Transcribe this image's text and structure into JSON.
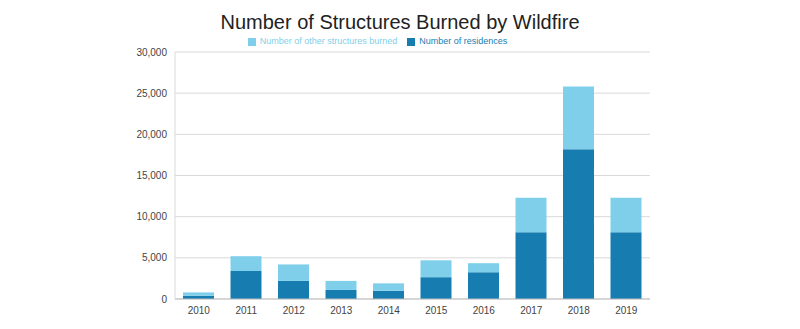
{
  "chart_data": {
    "type": "bar",
    "title": "Number of Structures Burned by Wildfire",
    "categories": [
      "2010",
      "2011",
      "2012",
      "2013",
      "2014",
      "2015",
      "2016",
      "2017",
      "2018",
      "2019"
    ],
    "series": [
      {
        "name": "Number of residences",
        "color": "#177db0",
        "values": [
          400,
          3400,
          2200,
          1100,
          1000,
          2650,
          3250,
          8100,
          18200,
          8100
        ]
      },
      {
        "name": "Number of other structures burned",
        "color": "#7fcfea",
        "values": [
          400,
          1800,
          2000,
          1100,
          900,
          2050,
          1100,
          4200,
          7600,
          4200
        ]
      }
    ],
    "stacked": true,
    "ylim": [
      0,
      30000
    ],
    "yticks": [
      0,
      {
        "value": 5000,
        "label": "5,000"
      },
      {
        "value": 10000,
        "label": "10,000"
      },
      {
        "value": 15000,
        "label": "15,000"
      },
      {
        "value": 20000,
        "label": "20,000"
      },
      {
        "value": 25000,
        "label": "25,000"
      },
      {
        "value": 30000,
        "label": "30,000"
      }
    ],
    "grid": true,
    "legend": "top"
  }
}
